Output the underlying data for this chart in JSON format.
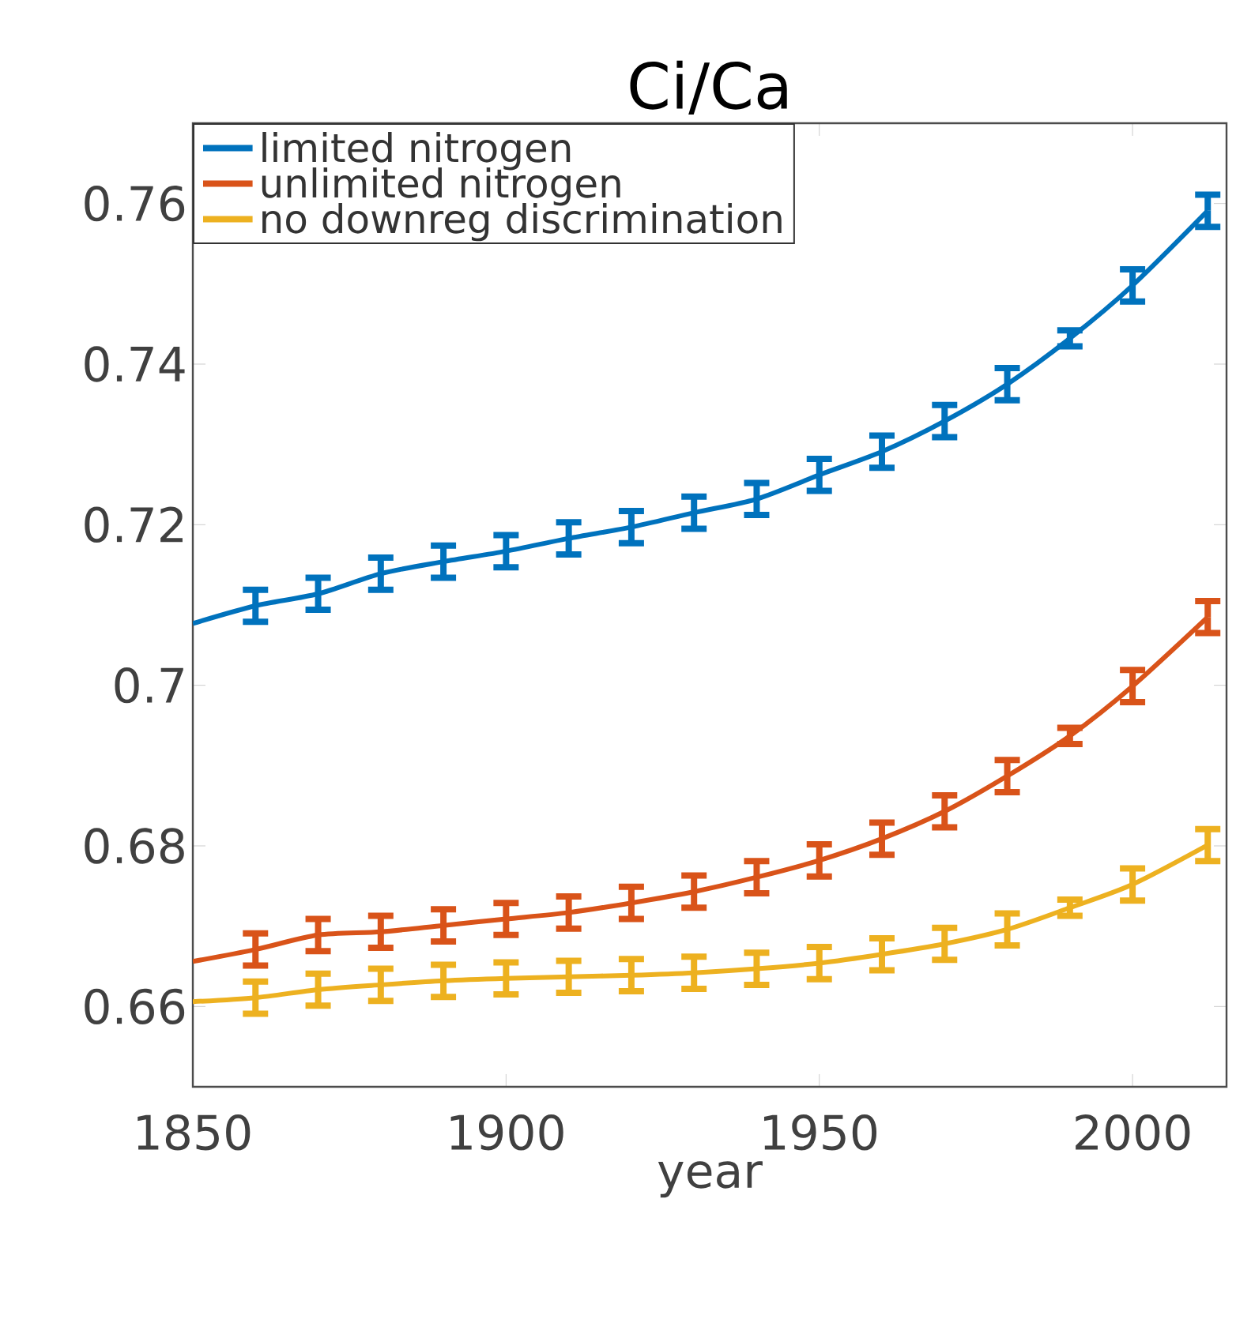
{
  "chart_data": {
    "type": "line",
    "title": "Ci/Ca",
    "xlabel": "year",
    "x": [
      1850,
      1860,
      1870,
      1880,
      1890,
      1900,
      1910,
      1920,
      1930,
      1940,
      1950,
      1960,
      1970,
      1980,
      1990,
      2000,
      2012
    ],
    "series": [
      {
        "name": "limited nitrogen",
        "color": "#0072bd",
        "values": [
          0.7077,
          0.7099,
          0.7114,
          0.7139,
          0.7154,
          0.7167,
          0.7183,
          0.7197,
          0.7215,
          0.7232,
          0.7262,
          0.7291,
          0.7329,
          0.7375,
          0.7432,
          0.7498,
          0.7591
        ],
        "errors": [
          null,
          0.002,
          0.002,
          0.002,
          0.002,
          0.002,
          0.002,
          0.002,
          0.002,
          0.002,
          0.002,
          0.002,
          0.002,
          0.002,
          0.001,
          0.002,
          0.002
        ]
      },
      {
        "name": "unlimited nitrogen",
        "color": "#d95319",
        "values": [
          0.6656,
          0.6671,
          0.6689,
          0.6693,
          0.6701,
          0.6709,
          0.6717,
          0.6729,
          0.6743,
          0.6761,
          0.6782,
          0.6809,
          0.6843,
          0.6887,
          0.6937,
          0.6999,
          0.7085
        ],
        "errors": [
          null,
          0.002,
          0.002,
          0.002,
          0.002,
          0.002,
          0.002,
          0.002,
          0.002,
          0.002,
          0.002,
          0.002,
          0.002,
          0.002,
          0.001,
          0.002,
          0.002
        ]
      },
      {
        "name": "no downreg discrimination",
        "color": "#edb120",
        "values": [
          0.6606,
          0.6611,
          0.6621,
          0.6627,
          0.6632,
          0.6635,
          0.6637,
          0.6639,
          0.6642,
          0.6647,
          0.6654,
          0.6665,
          0.6678,
          0.6696,
          0.6723,
          0.6752,
          0.6801
        ],
        "errors": [
          null,
          0.002,
          0.002,
          0.002,
          0.002,
          0.002,
          0.002,
          0.002,
          0.002,
          0.002,
          0.002,
          0.002,
          0.002,
          0.002,
          0.001,
          0.002,
          0.002
        ]
      }
    ],
    "xlim": [
      1850,
      2015
    ],
    "xticks": [
      1850,
      1900,
      1950,
      2000
    ],
    "ylim": [
      0.65,
      0.77
    ],
    "yticks": [
      0.66,
      0.68,
      0.7,
      0.72,
      0.74,
      0.76
    ],
    "grid": false,
    "legend": "top left"
  }
}
